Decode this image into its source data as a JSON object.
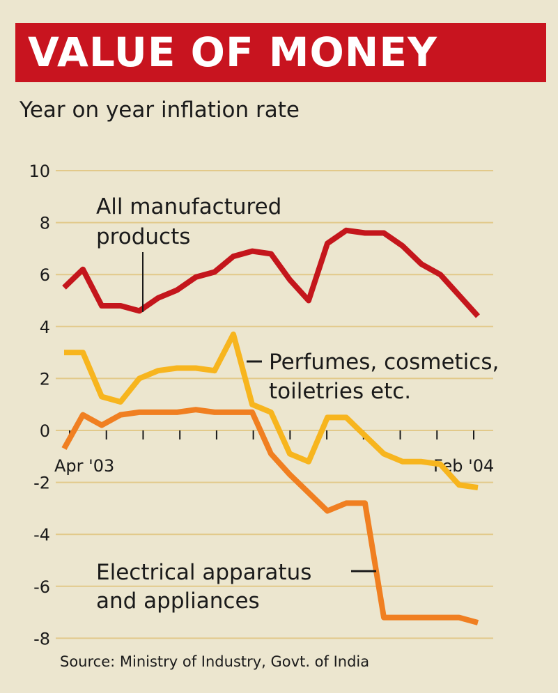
{
  "header": {
    "title": "VALUE OF MONEY",
    "subtitle": "Year on year inflation rate"
  },
  "footer": {
    "source": "Source: Ministry of Industry, Govt. of India"
  },
  "colors": {
    "background": "#ece6cf",
    "title_bar": "#c8141f",
    "grid": "#e2c98a",
    "text": "#1a1a1a"
  },
  "chart_data": {
    "type": "line",
    "title": "VALUE OF MONEY",
    "subtitle": "Year on year inflation rate",
    "xlabel": "",
    "ylabel": "",
    "ylim": [
      -8,
      10
    ],
    "yticks": [
      "10",
      "8",
      "6",
      "4",
      "2",
      "0",
      "-2",
      "-4",
      "-6",
      "-8"
    ],
    "x_tick_labels": {
      "first": "Apr '03",
      "last": "Feb '04"
    },
    "grid": true,
    "series": [
      {
        "name_line1": "All manufactured",
        "name_line2": "products",
        "color": "#c4161c",
        "values": [
          5.5,
          6.2,
          4.8,
          4.8,
          4.6,
          5.1,
          5.4,
          5.9,
          6.1,
          6.7,
          6.9,
          6.8,
          5.8,
          5.0,
          7.2,
          7.7,
          7.6,
          7.6,
          7.1,
          6.4,
          6.0,
          5.2,
          4.4
        ]
      },
      {
        "name_line1": "Perfumes, cosmetics,",
        "name_line2": "toiletries etc.",
        "color": "#f7b51e",
        "values": [
          3.0,
          3.0,
          1.3,
          1.1,
          2.0,
          2.3,
          2.4,
          2.4,
          2.3,
          3.7,
          1.0,
          0.7,
          -0.9,
          -1.2,
          0.5,
          0.5,
          -0.2,
          -0.9,
          -1.2,
          -1.2,
          -1.3,
          -2.1,
          -2.2
        ]
      },
      {
        "name_line1": "Electrical apparatus",
        "name_line2": "and appliances",
        "color": "#f07f21",
        "values": [
          -0.7,
          0.6,
          0.2,
          0.6,
          0.7,
          0.7,
          0.7,
          0.8,
          0.7,
          0.7,
          0.7,
          -0.9,
          -1.7,
          -2.4,
          -3.1,
          -2.8,
          -2.8,
          -7.2,
          -7.2,
          -7.2,
          -7.2,
          -7.2,
          -7.4
        ]
      }
    ]
  }
}
